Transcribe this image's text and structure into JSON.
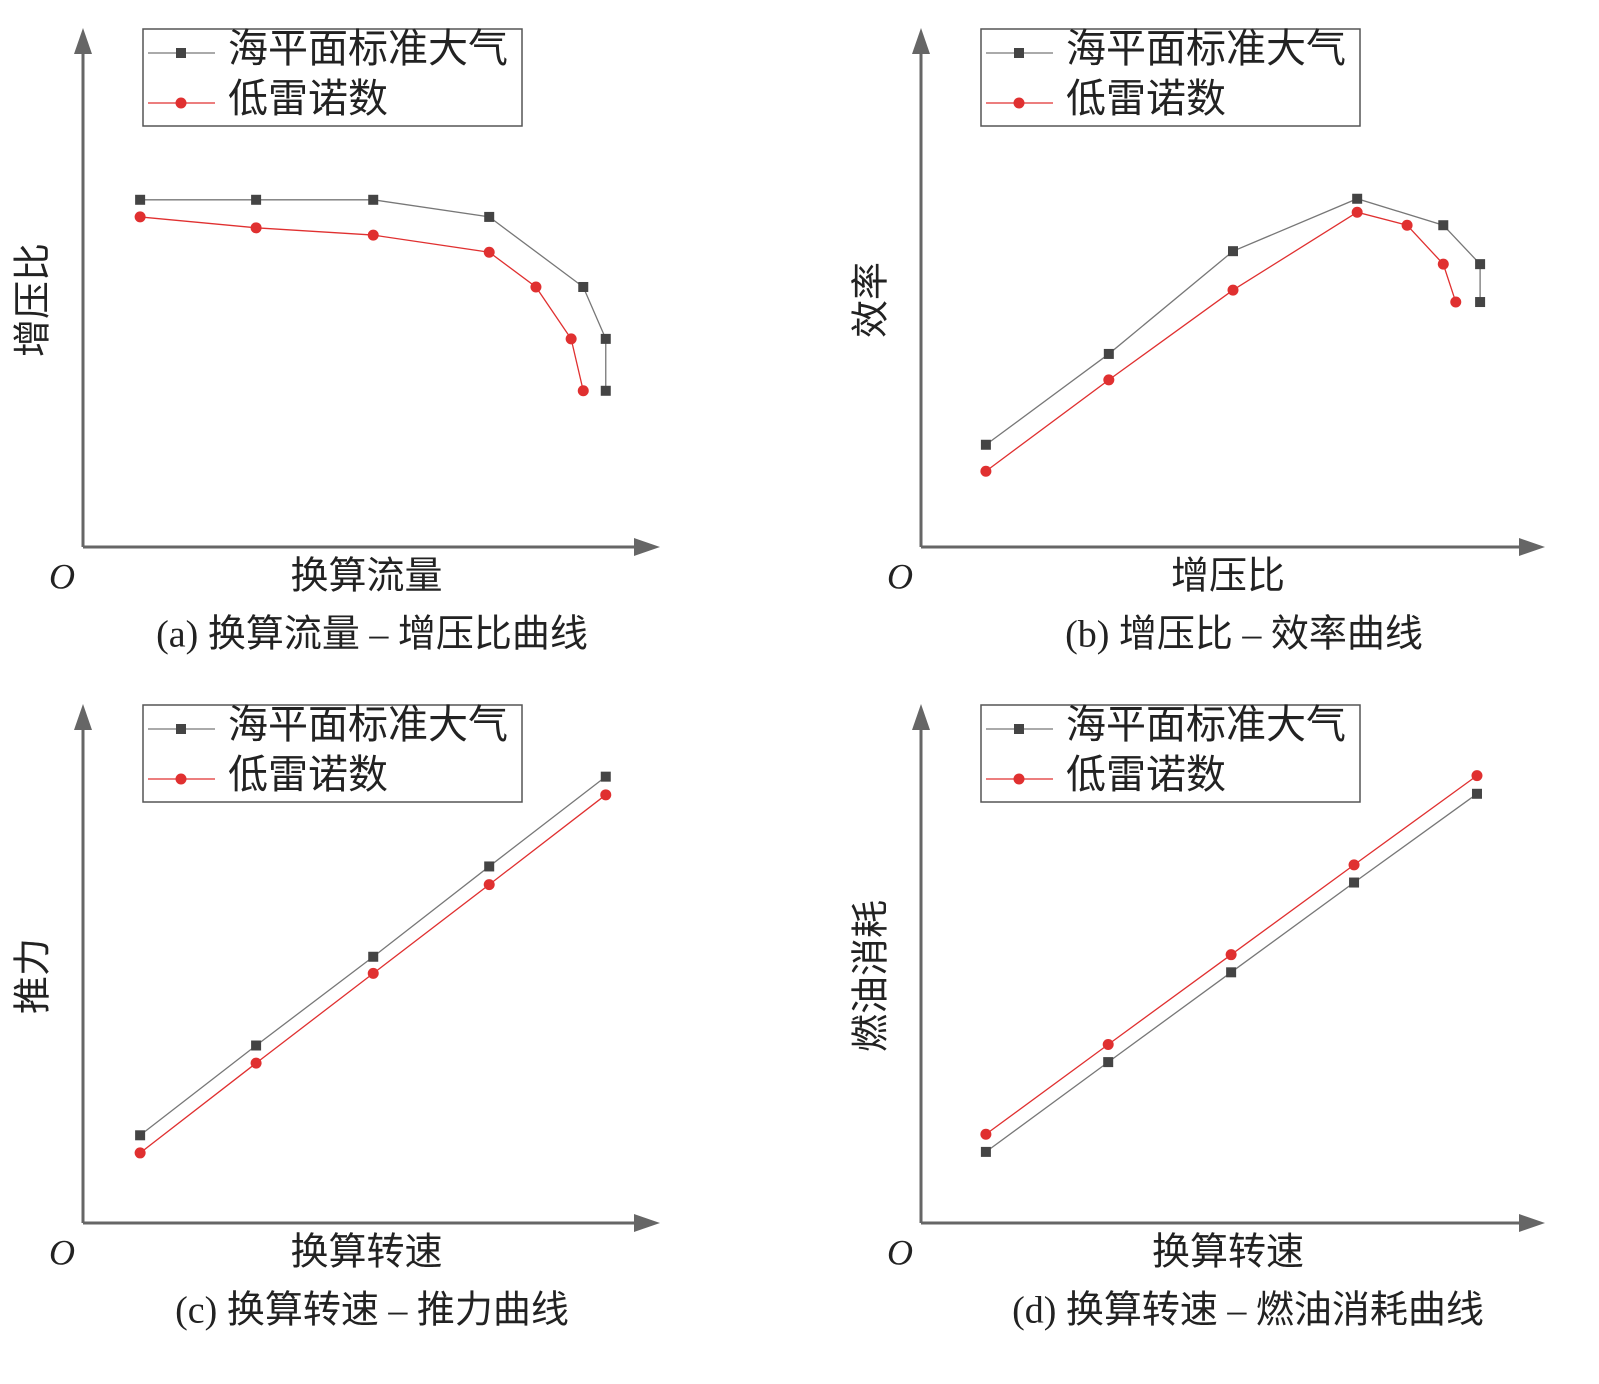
{
  "chart_data": [
    {
      "type": "line",
      "caption": "(a) 换算流量 – 增压比曲线",
      "x_label": "换算流量",
      "y_label": "增压比",
      "origin_label": "O",
      "xlim": [
        0,
        100
      ],
      "ylim": [
        0,
        100
      ],
      "series": [
        {
          "name": "海平面标准大气",
          "color": "#444444",
          "marker": "square",
          "x": [
            9.9,
            30.0,
            50.3,
            70.4,
            86.7,
            90.6,
            90.6
          ],
          "values": [
            66.9,
            66.9,
            66.9,
            63.6,
            50.1,
            40.1,
            30.1
          ]
        },
        {
          "name": "低雷诺数",
          "color": "#e03030",
          "marker": "circle",
          "x": [
            9.9,
            30.0,
            50.3,
            70.4,
            78.5,
            84.6,
            86.7
          ],
          "values": [
            63.6,
            61.5,
            60.1,
            56.8,
            50.1,
            40.1,
            30.1
          ]
        }
      ]
    },
    {
      "type": "line",
      "caption": "(b) 增压比 – 效率曲线",
      "x_label": "增压比",
      "y_label": "效率",
      "origin_label": "O",
      "xlim": [
        0,
        100
      ],
      "ylim": [
        0,
        100
      ],
      "series": [
        {
          "name": "海平面标准大气",
          "color": "#444444",
          "marker": "square",
          "x": [
            10.4,
            30.1,
            50.0,
            69.9,
            83.7,
            89.6,
            89.6
          ],
          "values": [
            19.7,
            37.2,
            57.0,
            67.1,
            62.0,
            54.5,
            47.2
          ]
        },
        {
          "name": "低雷诺数",
          "color": "#e03030",
          "marker": "circle",
          "x": [
            10.4,
            30.1,
            50.0,
            69.9,
            77.9,
            83.7,
            85.7
          ],
          "values": [
            14.6,
            32.2,
            49.5,
            64.5,
            62.0,
            54.5,
            47.2
          ]
        }
      ]
    },
    {
      "type": "line",
      "caption": "(c) 换算转速 – 推力曲线",
      "x_label": "换算转速",
      "y_label": "推力",
      "origin_label": "O",
      "xlim": [
        0,
        100
      ],
      "ylim": [
        0,
        100
      ],
      "series": [
        {
          "name": "海平面标准大气",
          "color": "#444444",
          "marker": "square",
          "x": [
            9.9,
            30.0,
            50.3,
            70.4,
            90.6
          ],
          "values": [
            16.9,
            34.2,
            51.3,
            68.7,
            86.0
          ]
        },
        {
          "name": "低雷诺数",
          "color": "#e03030",
          "marker": "circle",
          "x": [
            9.9,
            30.0,
            50.3,
            70.4,
            90.6
          ],
          "values": [
            13.5,
            30.8,
            48.1,
            65.2,
            82.5
          ]
        }
      ]
    },
    {
      "type": "line",
      "caption": "(d) 换算转速 – 燃油消耗曲线",
      "x_label": "换算转速",
      "y_label": "燃油消耗",
      "origin_label": "O",
      "xlim": [
        0,
        100
      ],
      "ylim": [
        0,
        100
      ],
      "series": [
        {
          "name": "海平面标准大气",
          "color": "#444444",
          "marker": "square",
          "x": [
            10.4,
            30.0,
            49.7,
            69.4,
            89.1
          ],
          "values": [
            13.7,
            31.0,
            48.3,
            65.6,
            82.7
          ]
        },
        {
          "name": "低雷诺数",
          "color": "#e03030",
          "marker": "circle",
          "x": [
            10.4,
            30.0,
            49.7,
            69.4,
            89.1
          ],
          "values": [
            17.1,
            34.4,
            51.7,
            69.0,
            86.2
          ]
        }
      ]
    }
  ]
}
